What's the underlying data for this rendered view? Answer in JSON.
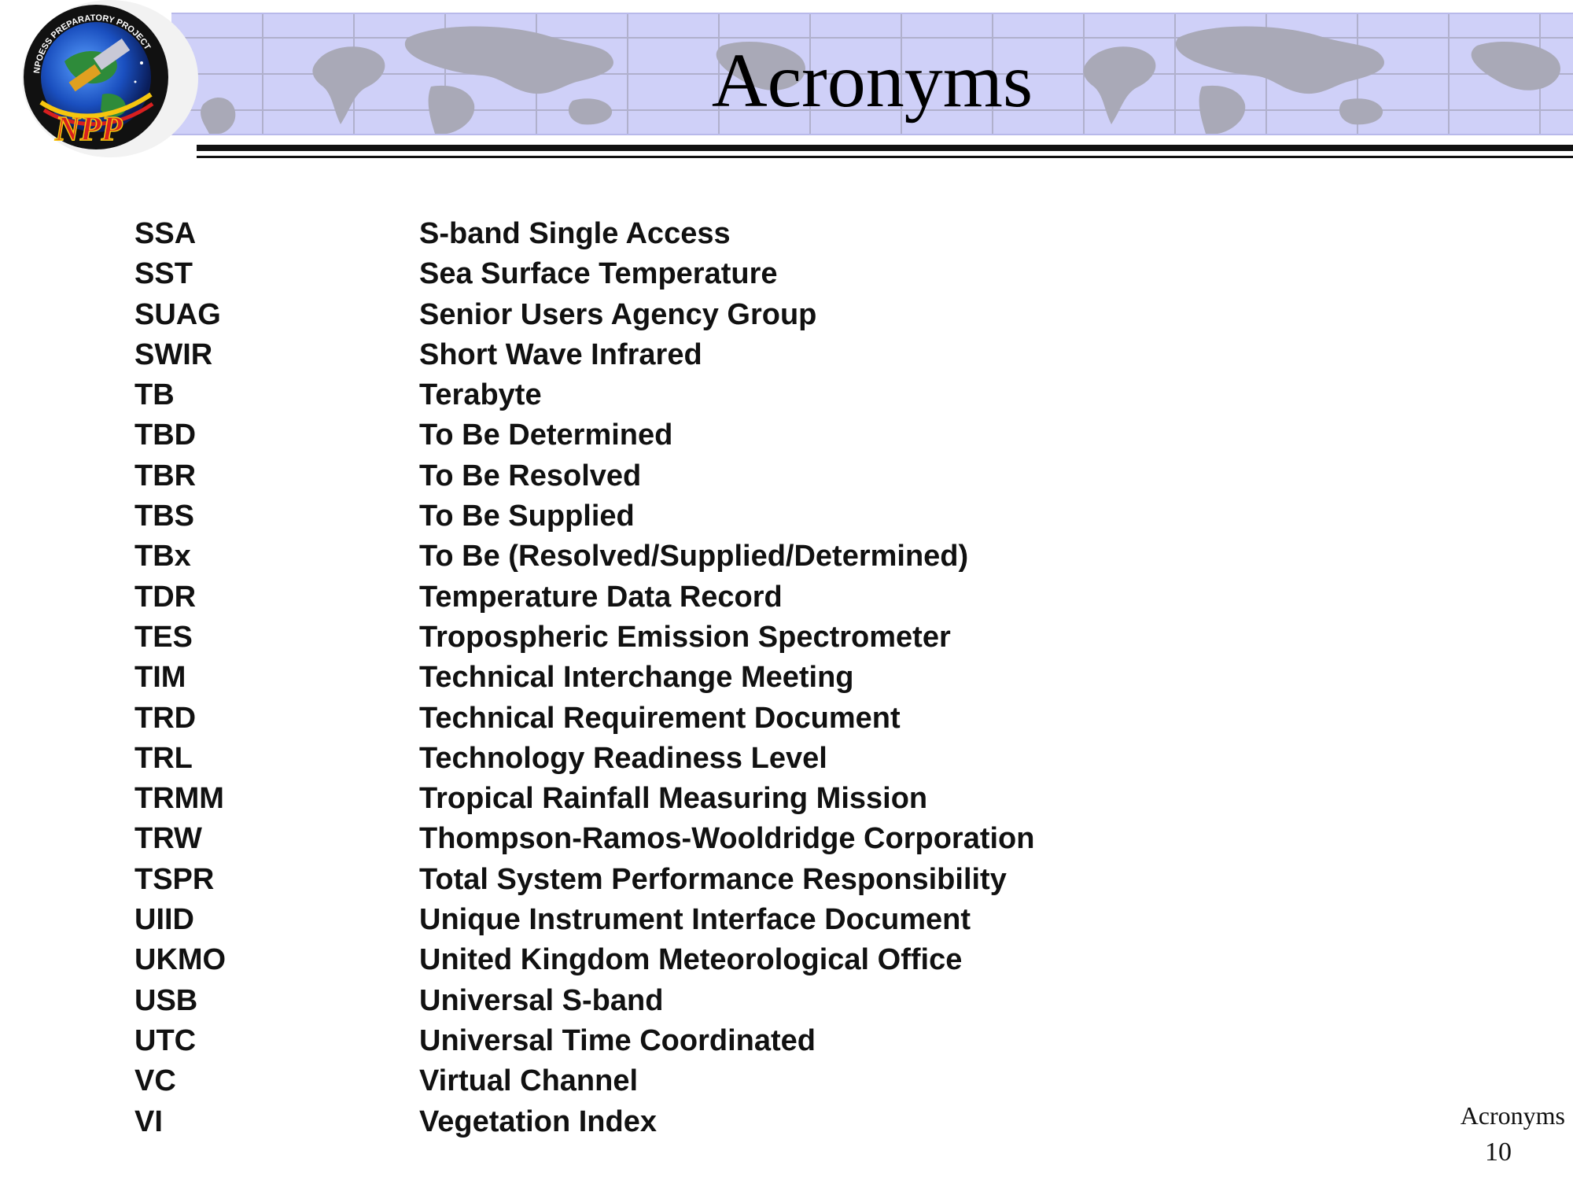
{
  "slide": {
    "title": "Acronyms",
    "footer_label": "Acronyms",
    "page_number": "10"
  },
  "logo": {
    "name": "NPOESS Preparatory Project logo",
    "ring_text": "NPOESS PREPARATORY PROJECT",
    "mark_text": "NPP"
  },
  "colors": {
    "banner": "#cfd0f8",
    "map_land": "#a9a9b7",
    "logo_red": "#d81f1f",
    "logo_yellow": "#f6c60f"
  },
  "acronyms": [
    {
      "term": "SSA",
      "definition": "S-band Single Access"
    },
    {
      "term": "SST",
      "definition": "Sea Surface Temperature"
    },
    {
      "term": "SUAG",
      "definition": "Senior Users Agency Group"
    },
    {
      "term": "SWIR",
      "definition": "Short Wave Infrared"
    },
    {
      "term": "TB",
      "definition": "Terabyte"
    },
    {
      "term": "TBD",
      "definition": "To Be Determined"
    },
    {
      "term": "TBR",
      "definition": "To Be Resolved"
    },
    {
      "term": "TBS",
      "definition": "To Be Supplied"
    },
    {
      "term": "TBx",
      "definition": "To Be (Resolved/Supplied/Determined)"
    },
    {
      "term": "TDR",
      "definition": "Temperature Data Record"
    },
    {
      "term": "TES",
      "definition": "Tropospheric Emission Spectrometer"
    },
    {
      "term": "TIM",
      "definition": "Technical Interchange Meeting"
    },
    {
      "term": "TRD",
      "definition": "Technical Requirement Document"
    },
    {
      "term": "TRL",
      "definition": "Technology Readiness Level"
    },
    {
      "term": "TRMM",
      "definition": "Tropical Rainfall Measuring Mission"
    },
    {
      "term": "TRW",
      "definition": "Thompson-Ramos-Wooldridge Corporation"
    },
    {
      "term": "TSPR",
      "definition": "Total System Performance Responsibility"
    },
    {
      "term": "UIID",
      "definition": "Unique Instrument Interface Document"
    },
    {
      "term": "UKMO",
      "definition": "United Kingdom Meteorological Office"
    },
    {
      "term": "USB",
      "definition": "Universal S-band"
    },
    {
      "term": "UTC",
      "definition": "Universal Time Coordinated"
    },
    {
      "term": "VC",
      "definition": "Virtual Channel"
    },
    {
      "term": "VI",
      "definition": "Vegetation Index"
    }
  ]
}
